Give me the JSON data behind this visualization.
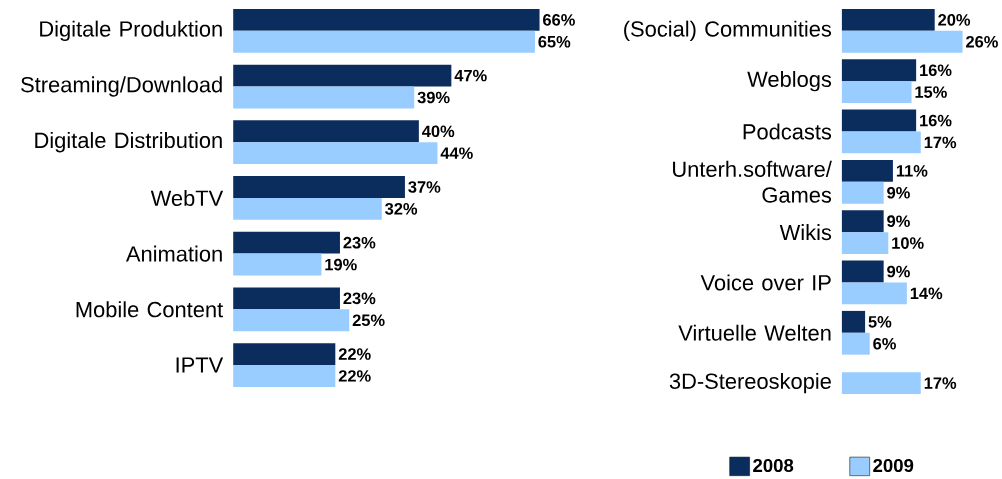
{
  "chart_data": [
    {
      "type": "bar",
      "orientation": "horizontal",
      "legend": false,
      "categories": [
        "Digitale Produktion",
        "Streaming/Download",
        "Digitale Distribution",
        "WebTV",
        "Animation",
        "Mobile Content",
        "IPTV"
      ],
      "series": [
        {
          "color": "#0b2d5e",
          "values": [
            66,
            47,
            40,
            37,
            23,
            23,
            22
          ],
          "value_labels": [
            "66%",
            "47%",
            "40%",
            "37%",
            "23%",
            "23%",
            "22%"
          ]
        },
        {
          "color": "#99ccff",
          "values": [
            65,
            39,
            44,
            32,
            19,
            25,
            22
          ],
          "value_labels": [
            "65%",
            "39%",
            "44%",
            "32%",
            "19%",
            "25%",
            "22%"
          ]
        }
      ]
    },
    {
      "type": "bar",
      "orientation": "horizontal",
      "legend": "bottom left",
      "categories": [
        "(Social) Communities",
        "Weblogs",
        "Podcasts",
        "Unterh.software/ Games",
        "Wikis",
        "Voice over IP",
        "Virtuelle Welten",
        "3D-Stereoskopie"
      ],
      "series": [
        {
          "name": "2008",
          "color": "#0b2d5e",
          "values": [
            20,
            16,
            16,
            11,
            9,
            9,
            5,
            null
          ],
          "value_labels": [
            "20%",
            "16%",
            "16%",
            "11%",
            "9%",
            "9%",
            "5%",
            null
          ]
        },
        {
          "name": "2009",
          "color": "#99ccff",
          "values": [
            26,
            15,
            17,
            9,
            10,
            14,
            6,
            17
          ],
          "value_labels": [
            "26%",
            "15%",
            "17%",
            "9%",
            "10%",
            "14%",
            "6%",
            "17%"
          ]
        }
      ]
    }
  ]
}
